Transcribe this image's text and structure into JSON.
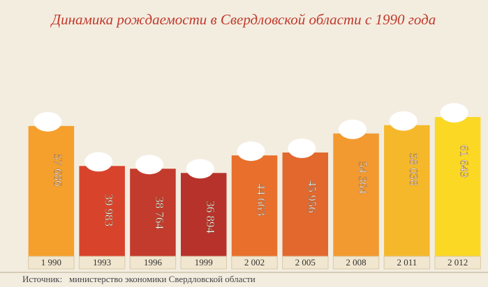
{
  "chart_data": {
    "type": "bar",
    "title": "Динамика рождаемости в Свердловской области с 1990 года",
    "source": "Источник:   министерство экономики Свердловской области",
    "categories": [
      "1 990",
      "1993",
      "1996",
      "1999",
      "2 002",
      "2 005",
      "2 008",
      "2 011",
      "2 012"
    ],
    "values": [
      57686,
      39983,
      38764,
      36894,
      44663,
      45956,
      54364,
      58038,
      61649
    ],
    "value_labels": [
      "57 686",
      "39 983",
      "38 764",
      "36 894",
      "44 663",
      "45 956",
      "54 364",
      "58 038",
      "61 649"
    ],
    "colors": [
      "#f5a02c",
      "#d8432c",
      "#c23b2c",
      "#b7322b",
      "#e8702c",
      "#e2682d",
      "#f29a30",
      "#f5b82b",
      "#fbd823"
    ]
  }
}
